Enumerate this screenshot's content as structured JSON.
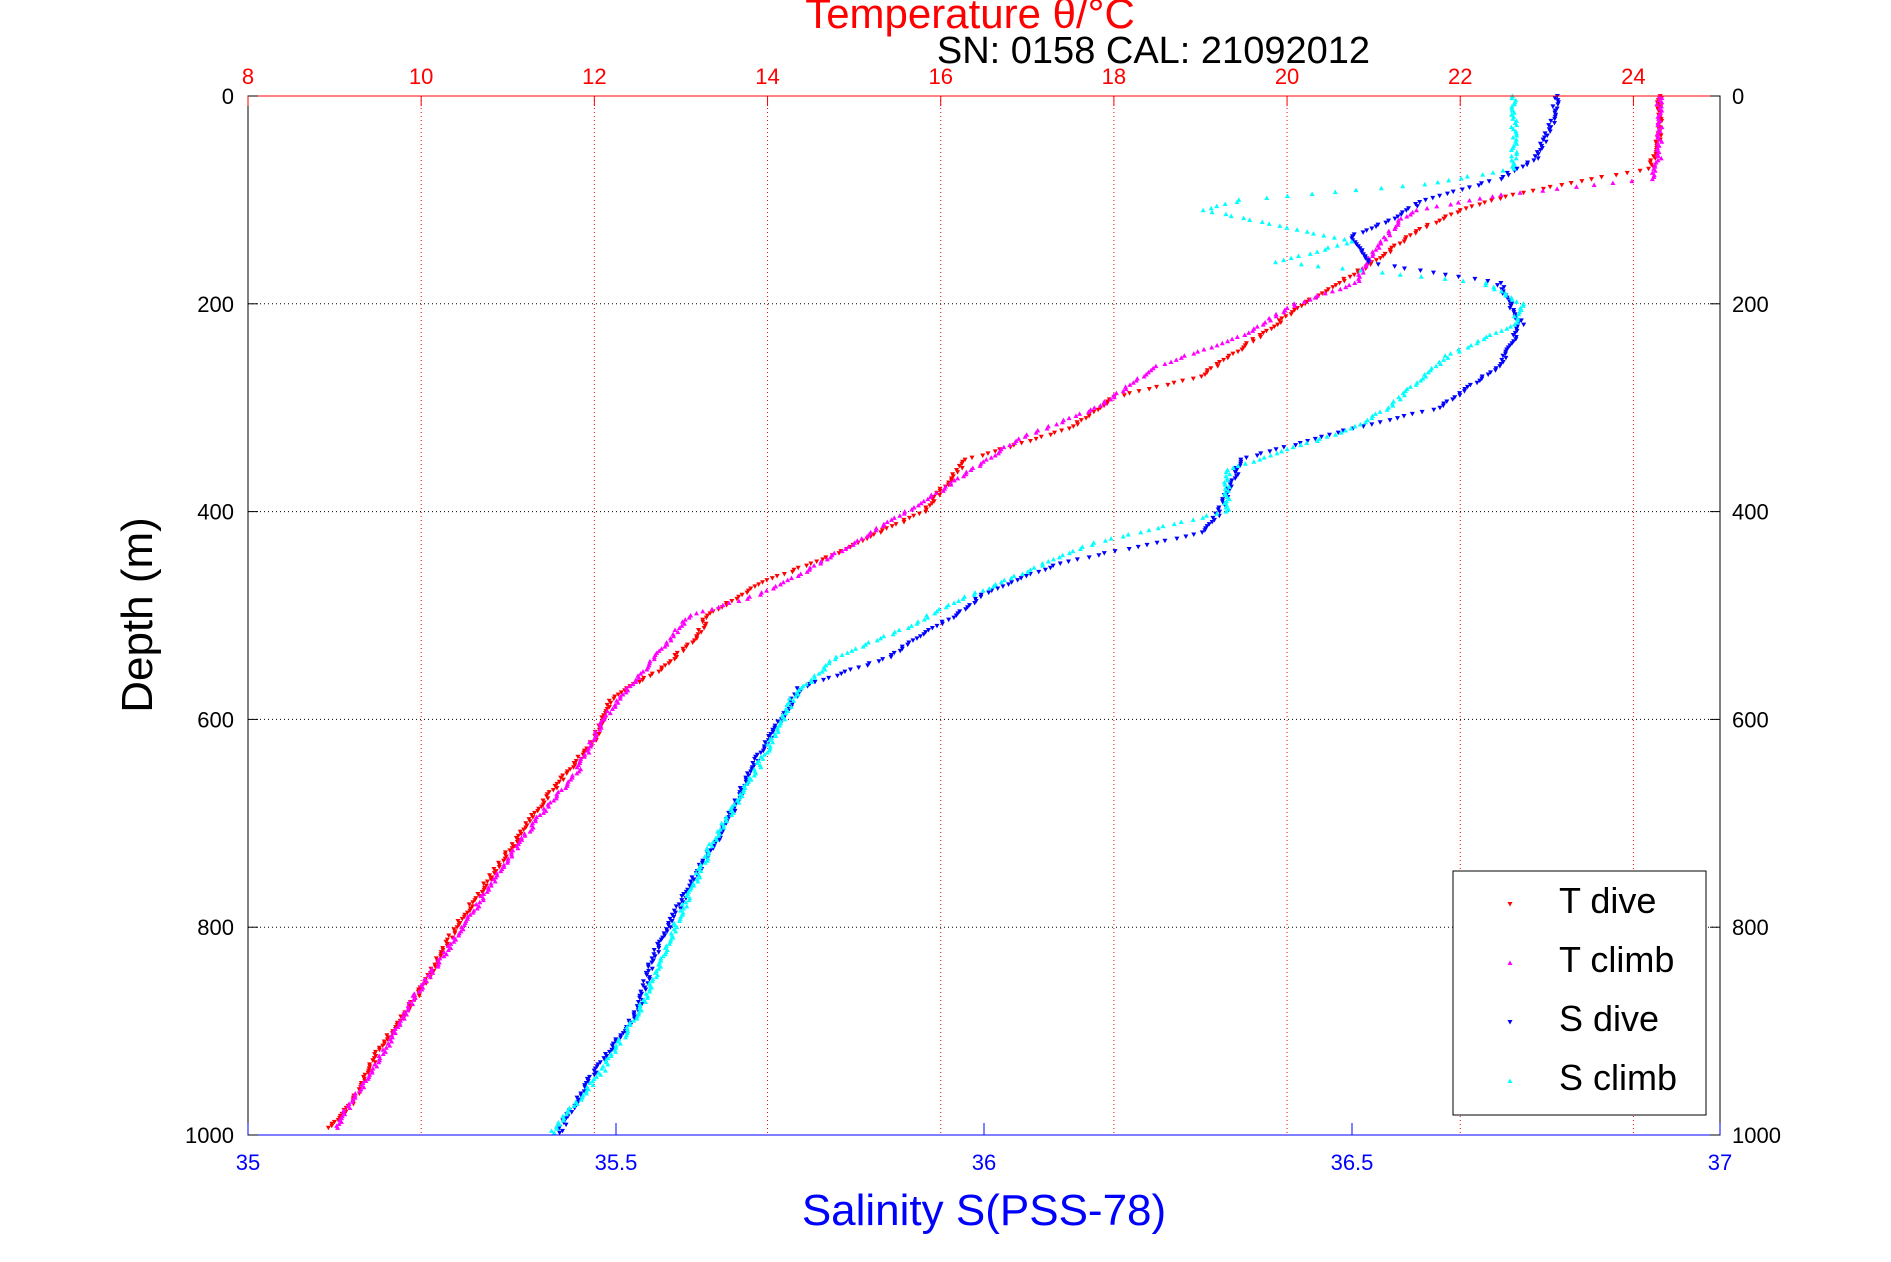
{
  "chart_data": {
    "type": "scatter",
    "title": "Temperature θ/°C",
    "annotation": "SN: 0158  CAL: 21092012",
    "ylabel": "Depth (m)",
    "xlabel_bottom": "Salinity S(PSS-78)",
    "y_axis": {
      "ticks": [
        "0",
        "200",
        "400",
        "600",
        "800",
        "1000"
      ],
      "range": [
        0,
        1000
      ],
      "reversed": true
    },
    "x_top": {
      "ticks": [
        "8",
        "10",
        "12",
        "14",
        "16",
        "18",
        "20",
        "22",
        "24"
      ],
      "range": [
        8,
        25
      ],
      "color": "#ff0000"
    },
    "x_bottom": {
      "ticks": [
        "35",
        "35.5",
        "36",
        "36.5",
        "37"
      ],
      "range": [
        35,
        37
      ],
      "color": "#0000ff"
    },
    "grid": true,
    "legend_position": "bottom-right",
    "series": [
      {
        "name": "T dive",
        "axis": "temperature",
        "marker": "down-triangle",
        "color": "#ff0000",
        "profile": [
          [
            0,
            24.3
          ],
          [
            40,
            24.3
          ],
          [
            70,
            24.2
          ],
          [
            80,
            23.5
          ],
          [
            95,
            22.6
          ],
          [
            110,
            22
          ],
          [
            130,
            21.5
          ],
          [
            160,
            21
          ],
          [
            200,
            20.2
          ],
          [
            230,
            19.7
          ],
          [
            270,
            19
          ],
          [
            290,
            18
          ],
          [
            320,
            17.5
          ],
          [
            350,
            16.3
          ],
          [
            400,
            15.8
          ],
          [
            440,
            14.8
          ],
          [
            470,
            13.9
          ],
          [
            500,
            13.3
          ],
          [
            520,
            13.2
          ],
          [
            550,
            12.8
          ],
          [
            580,
            12.2
          ],
          [
            620,
            12
          ],
          [
            680,
            11.4
          ],
          [
            740,
            10.9
          ],
          [
            800,
            10.4
          ],
          [
            860,
            10
          ],
          [
            920,
            9.5
          ],
          [
            970,
            9.2
          ],
          [
            995,
            8.9
          ]
        ]
      },
      {
        "name": "T climb",
        "axis": "temperature",
        "marker": "up-triangle",
        "color": "#ff00ff",
        "profile": [
          [
            0,
            24.3
          ],
          [
            60,
            24.3
          ],
          [
            80,
            24.2
          ],
          [
            95,
            22.5
          ],
          [
            110,
            21.5
          ],
          [
            120,
            21.3
          ],
          [
            150,
            21
          ],
          [
            180,
            20.8
          ],
          [
            200,
            20.1
          ],
          [
            230,
            19.5
          ],
          [
            260,
            18.5
          ],
          [
            300,
            17.8
          ],
          [
            330,
            16.9
          ],
          [
            380,
            16
          ],
          [
            430,
            15
          ],
          [
            460,
            14.4
          ],
          [
            480,
            13.9
          ],
          [
            500,
            13.1
          ],
          [
            520,
            12.9
          ],
          [
            560,
            12.5
          ],
          [
            600,
            12.1
          ],
          [
            650,
            11.8
          ],
          [
            700,
            11.3
          ],
          [
            760,
            10.8
          ],
          [
            810,
            10.4
          ],
          [
            870,
            9.9
          ],
          [
            930,
            9.5
          ],
          [
            980,
            9.1
          ],
          [
            995,
            9
          ]
        ]
      },
      {
        "name": "S dive",
        "axis": "salinity",
        "marker": "down-triangle",
        "color": "#0000ff",
        "profile": [
          [
            0,
            36.78
          ],
          [
            30,
            36.77
          ],
          [
            60,
            36.75
          ],
          [
            80,
            36.7
          ],
          [
            100,
            36.6
          ],
          [
            120,
            36.55
          ],
          [
            135,
            36.5
          ],
          [
            160,
            36.52
          ],
          [
            180,
            36.7
          ],
          [
            220,
            36.73
          ],
          [
            260,
            36.7
          ],
          [
            300,
            36.62
          ],
          [
            320,
            36.5
          ],
          [
            350,
            36.35
          ],
          [
            400,
            36.32
          ],
          [
            420,
            36.3
          ],
          [
            450,
            36.1
          ],
          [
            480,
            36
          ],
          [
            500,
            35.96
          ],
          [
            540,
            35.87
          ],
          [
            570,
            35.75
          ],
          [
            640,
            35.69
          ],
          [
            700,
            35.65
          ],
          [
            760,
            35.6
          ],
          [
            830,
            35.55
          ],
          [
            880,
            35.53
          ],
          [
            940,
            35.47
          ],
          [
            1000,
            35.42
          ]
        ]
      },
      {
        "name": "S climb",
        "axis": "salinity",
        "marker": "up-triangle",
        "color": "#00ffff",
        "profile": [
          [
            0,
            36.72
          ],
          [
            40,
            36.72
          ],
          [
            70,
            36.72
          ],
          [
            85,
            36.6
          ],
          [
            100,
            36.35
          ],
          [
            110,
            36.3
          ],
          [
            125,
            36.4
          ],
          [
            140,
            36.5
          ],
          [
            160,
            36.4
          ],
          [
            180,
            36.68
          ],
          [
            200,
            36.73
          ],
          [
            220,
            36.72
          ],
          [
            250,
            36.63
          ],
          [
            280,
            36.58
          ],
          [
            300,
            36.55
          ],
          [
            320,
            36.5
          ],
          [
            360,
            36.33
          ],
          [
            400,
            36.33
          ],
          [
            430,
            36.15
          ],
          [
            460,
            36.05
          ],
          [
            490,
            35.95
          ],
          [
            510,
            35.9
          ],
          [
            540,
            35.8
          ],
          [
            580,
            35.74
          ],
          [
            650,
            35.69
          ],
          [
            720,
            35.63
          ],
          [
            800,
            35.58
          ],
          [
            870,
            35.54
          ],
          [
            940,
            35.48
          ],
          [
            1000,
            35.41
          ]
        ]
      }
    ]
  }
}
